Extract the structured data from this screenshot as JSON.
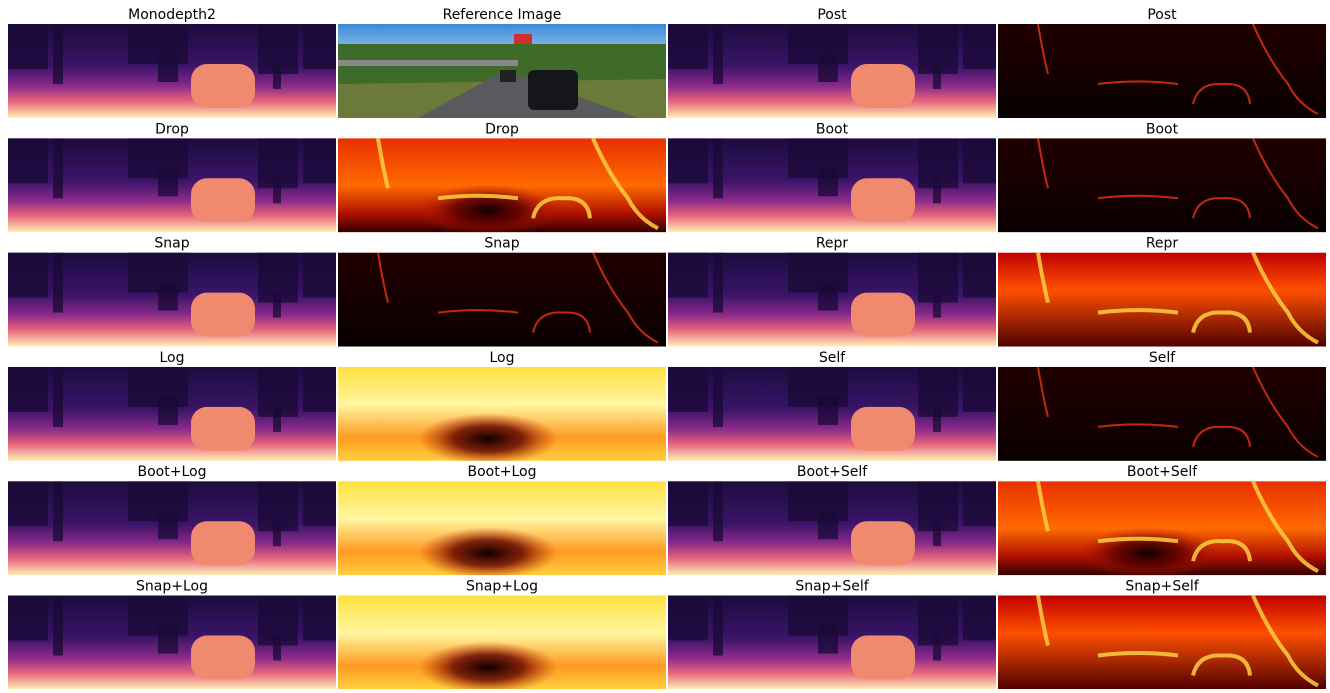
{
  "rows": [
    [
      "Monodepth2",
      "Reference Image",
      "Post",
      "Post"
    ],
    [
      "Drop",
      "Drop",
      "Boot",
      "Boot"
    ],
    [
      "Snap",
      "Snap",
      "Repr",
      "Repr"
    ],
    [
      "Log",
      "Log",
      "Self",
      "Self"
    ],
    [
      "Boot+Log",
      "Boot+Log",
      "Boot+Self",
      "Boot+Self"
    ],
    [
      "Snap+Log",
      "Snap+Log",
      "Snap+Self",
      "Snap+Self"
    ]
  ]
}
